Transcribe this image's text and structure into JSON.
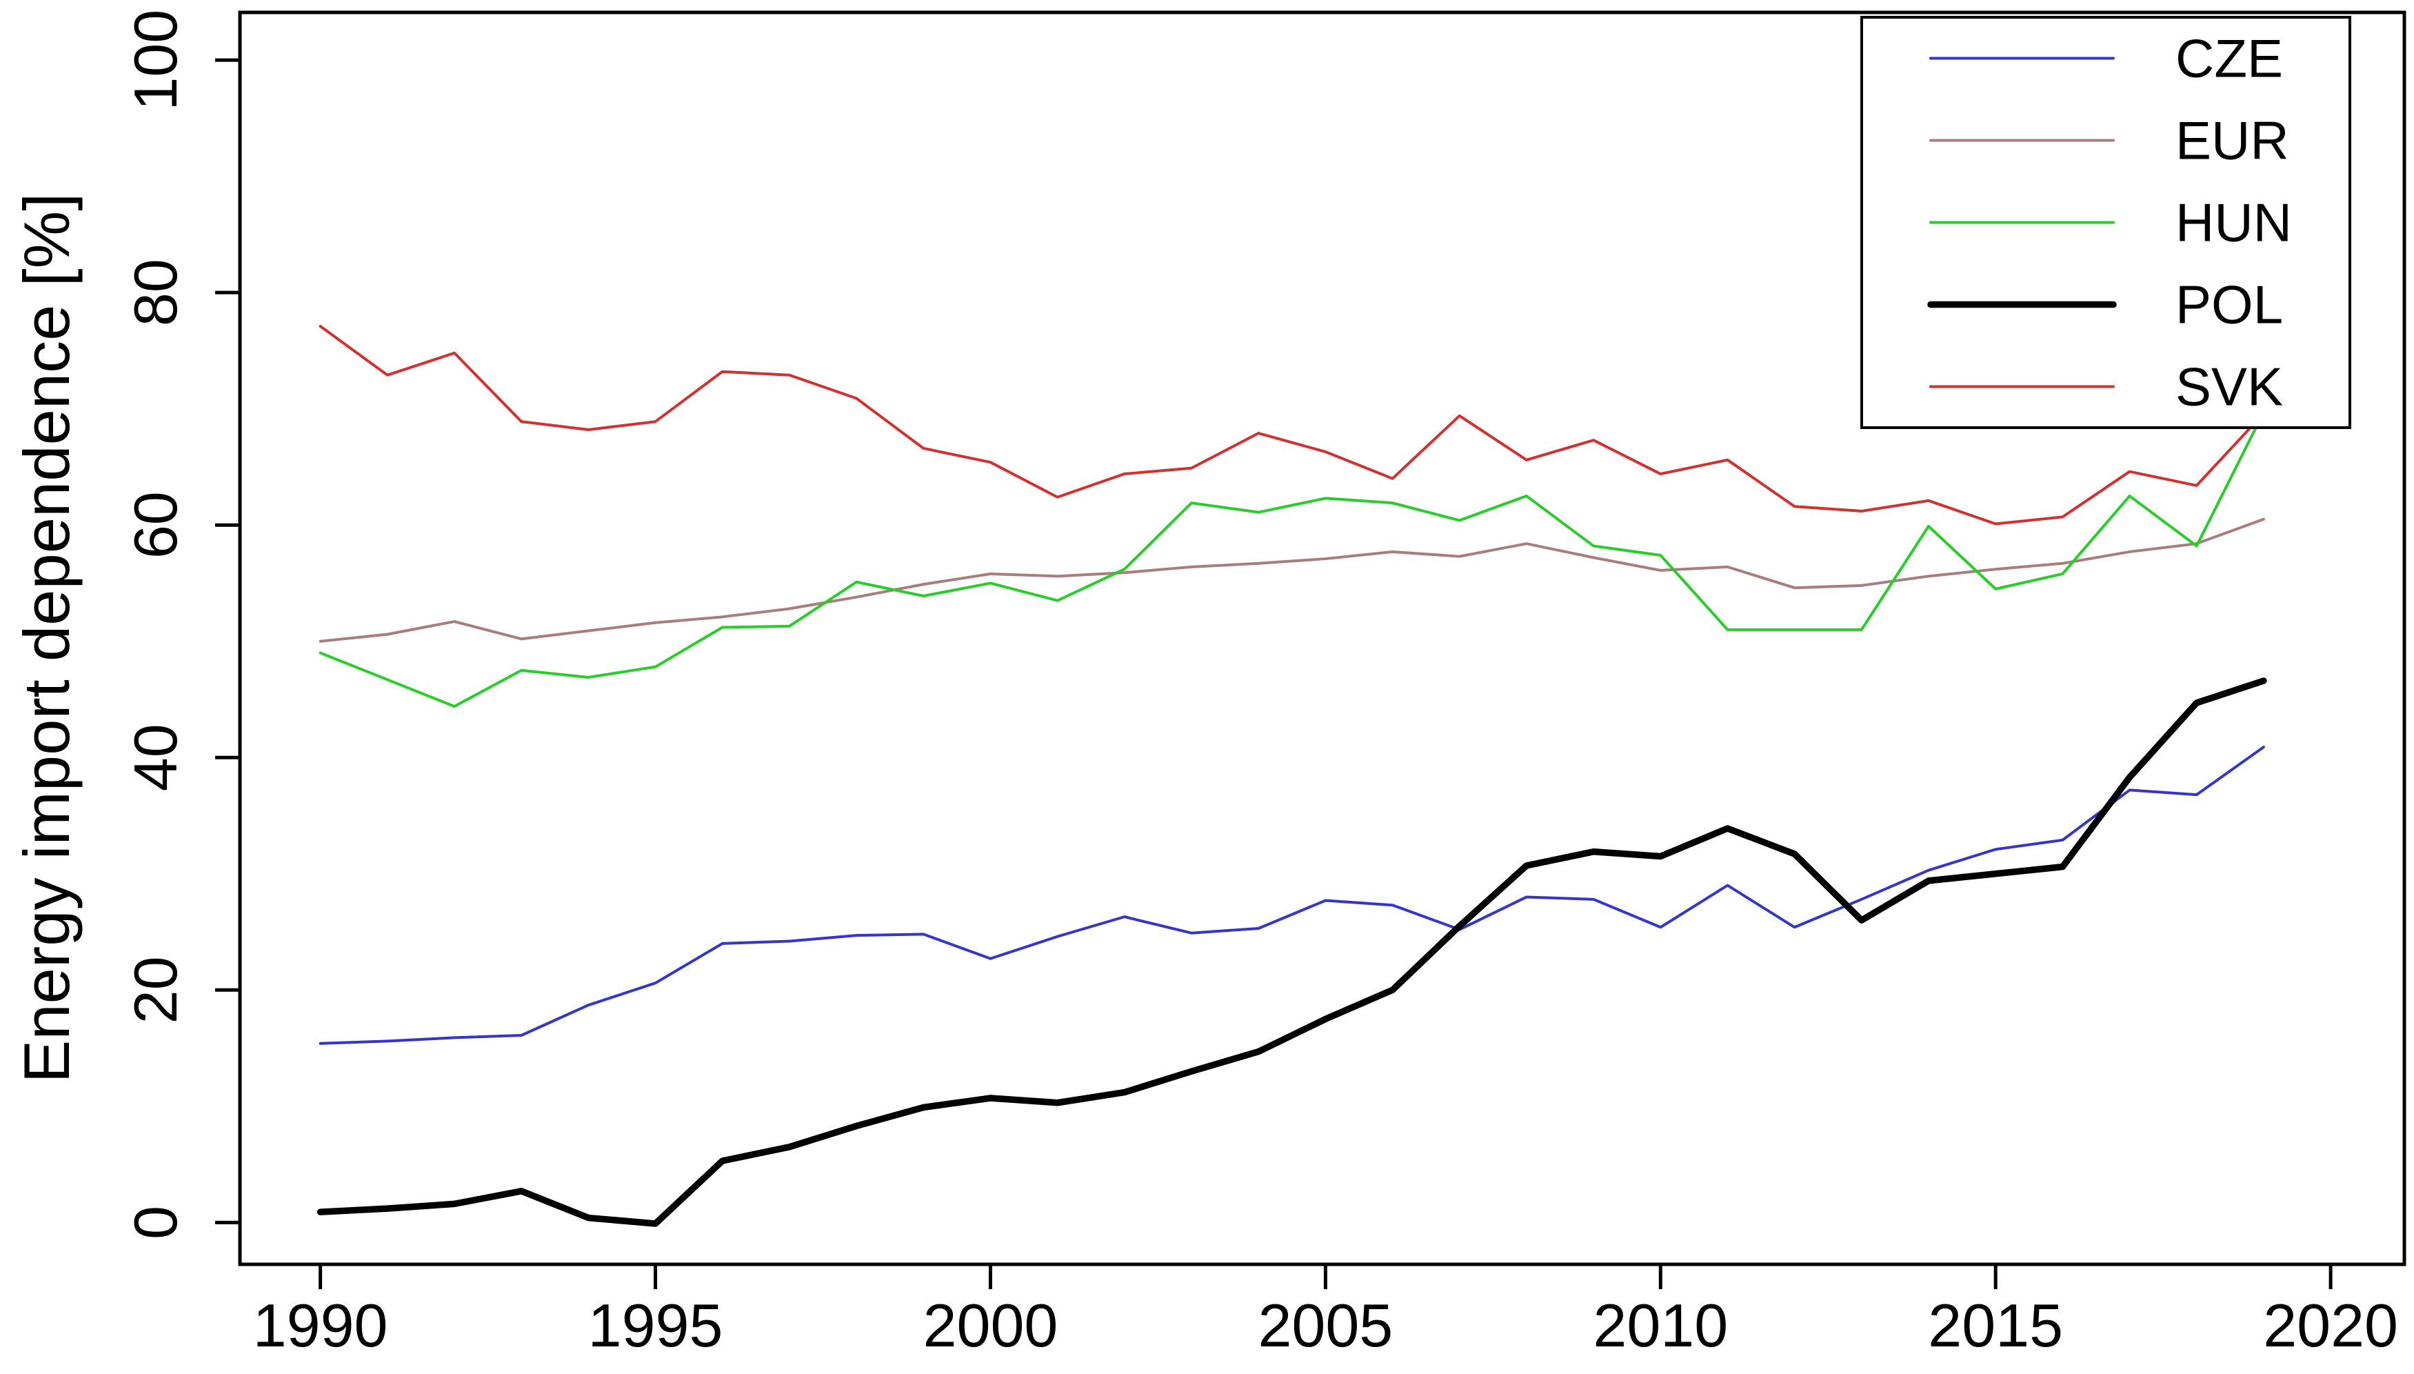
{
  "window": {
    "background_color": "#ffffff",
    "axis_color": "#000000"
  },
  "chart_data": {
    "type": "line",
    "title": "",
    "xlabel": "",
    "ylabel": "Energy import dependence [%]",
    "grid": false,
    "legend_position": "top-right",
    "xlim": [
      1988.8,
      2021.1
    ],
    "ylim": [
      -3.6,
      104.1
    ],
    "x_ticks": [
      1990,
      1995,
      2000,
      2005,
      2010,
      2015,
      2020
    ],
    "y_ticks": [
      0,
      20,
      40,
      60,
      80,
      100
    ],
    "x": [
      1990,
      1991,
      1992,
      1993,
      1994,
      1995,
      1996,
      1997,
      1998,
      1999,
      2000,
      2001,
      2002,
      2003,
      2004,
      2005,
      2006,
      2007,
      2008,
      2009,
      2010,
      2011,
      2012,
      2013,
      2014,
      2015,
      2016,
      2017,
      2018,
      2019
    ],
    "series": [
      {
        "name": "CZE",
        "color": "#3535cd",
        "line_width": 4,
        "values": [
          15.4,
          15.6,
          15.9,
          16.1,
          18.7,
          20.6,
          24.0,
          24.2,
          24.7,
          24.8,
          22.7,
          24.6,
          26.3,
          24.9,
          25.3,
          27.7,
          27.3,
          25.2,
          28.0,
          27.8,
          25.4,
          29.0,
          25.4,
          27.8,
          30.3,
          32.1,
          32.9,
          37.2,
          36.8,
          40.9
        ]
      },
      {
        "name": "EUR",
        "color": "#aa7d7d",
        "line_width": 4,
        "values": [
          50.0,
          50.6,
          51.7,
          50.2,
          50.9,
          51.6,
          52.1,
          52.8,
          53.8,
          54.9,
          55.8,
          55.6,
          55.9,
          56.4,
          56.7,
          57.1,
          57.7,
          57.3,
          58.4,
          57.2,
          56.1,
          56.4,
          54.6,
          54.8,
          55.6,
          56.2,
          56.7,
          57.7,
          58.4,
          60.5
        ]
      },
      {
        "name": "HUN",
        "color": "#29cd29",
        "line_width": 4,
        "values": [
          49.0,
          46.7,
          44.4,
          47.5,
          46.9,
          47.8,
          51.2,
          51.3,
          55.1,
          53.9,
          55.0,
          53.5,
          56.2,
          61.9,
          61.1,
          62.3,
          61.9,
          60.4,
          62.5,
          58.2,
          57.4,
          51.0,
          51.0,
          51.0,
          59.9,
          54.5,
          55.8,
          62.5,
          58.2,
          69.7
        ]
      },
      {
        "name": "POL",
        "color": "#000000",
        "line_width": 9.5,
        "values": [
          0.9,
          1.2,
          1.6,
          2.7,
          0.4,
          -0.1,
          5.3,
          6.5,
          8.3,
          9.9,
          10.7,
          10.3,
          11.2,
          13.0,
          14.7,
          17.5,
          20.0,
          25.5,
          30.7,
          31.9,
          31.5,
          33.9,
          31.7,
          26.0,
          29.4,
          30.0,
          30.6,
          38.3,
          44.7,
          46.6
        ]
      },
      {
        "name": "SVK",
        "color": "#d33030",
        "line_width": 4,
        "values": [
          77.1,
          72.9,
          74.8,
          68.9,
          68.2,
          68.9,
          73.2,
          72.9,
          70.9,
          66.6,
          65.4,
          62.4,
          64.4,
          64.9,
          67.9,
          66.3,
          64.0,
          69.4,
          65.6,
          67.3,
          64.4,
          65.6,
          61.6,
          61.2,
          62.1,
          60.1,
          60.7,
          64.6,
          63.4,
          69.6
        ]
      }
    ]
  }
}
